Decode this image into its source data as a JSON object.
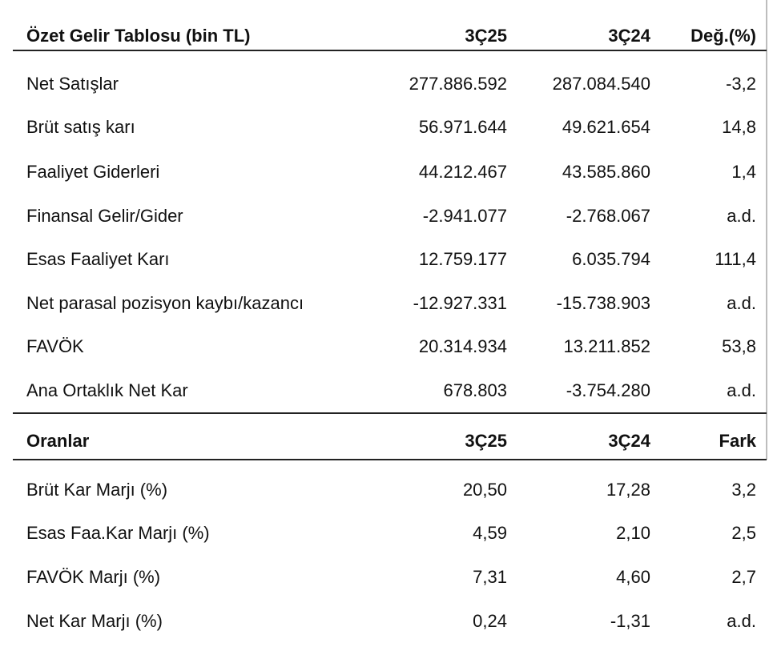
{
  "income": {
    "header": [
      "Özet Gelir Tablosu (bin TL)",
      "3Ç25",
      "3Ç24",
      "Değ.(%)"
    ],
    "rows": [
      [
        "Net Satışlar",
        "277.886.592",
        "287.084.540",
        "-3,2"
      ],
      [
        "Brüt satış karı",
        "56.971.644",
        "49.621.654",
        "14,8"
      ],
      [
        "Faaliyet Giderleri",
        "44.212.467",
        "43.585.860",
        "1,4"
      ],
      [
        "Finansal Gelir/Gider",
        "-2.941.077",
        "-2.768.067",
        "a.d."
      ],
      [
        "Esas Faaliyet Karı",
        "12.759.177",
        "6.035.794",
        "111,4"
      ],
      [
        "Net parasal pozisyon kaybı/kazancı",
        "-12.927.331",
        "-15.738.903",
        "a.d."
      ],
      [
        "FAVÖK",
        "20.314.934",
        "13.211.852",
        "53,8"
      ],
      [
        "Ana Ortaklık Net Kar",
        "678.803",
        "-3.754.280",
        "a.d."
      ]
    ]
  },
  "ratios": {
    "header": [
      "Oranlar",
      "3Ç25",
      "3Ç24",
      "Fark"
    ],
    "rows": [
      [
        "Brüt Kar Marjı (%)",
        "20,50",
        "17,28",
        "3,2"
      ],
      [
        "Esas Faa.Kar Marjı (%)",
        "4,59",
        "2,10",
        "2,5"
      ],
      [
        "FAVÖK Marjı (%)",
        "7,31",
        "4,60",
        "2,7"
      ],
      [
        "Net Kar Marjı (%)",
        "0,24",
        "-1,31",
        "a.d."
      ]
    ]
  }
}
